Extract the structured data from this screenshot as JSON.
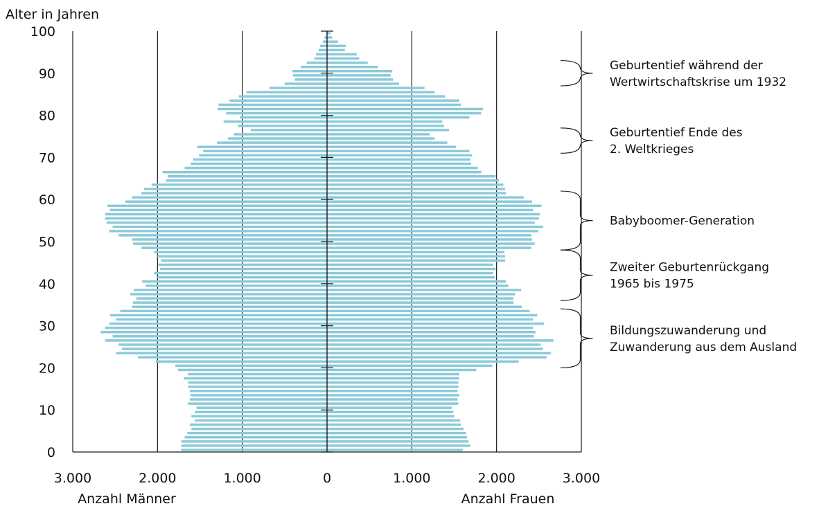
{
  "chart_data": {
    "type": "bar",
    "orientation": "horizontal-population-pyramid",
    "ylabel": "Alter in Jahren",
    "xlabel_left": "Anzahl Männer",
    "xlabel_right": "Anzahl Frauen",
    "xlim": [
      -3000,
      3000
    ],
    "ylim": [
      0,
      100
    ],
    "x_ticks": [
      -3000,
      -2000,
      -1000,
      0,
      1000,
      2000,
      3000
    ],
    "x_tick_labels": [
      "3.000",
      "2.000",
      "1.000",
      "0",
      "1.000",
      "2.000",
      "3.000"
    ],
    "y_ticks": [
      0,
      10,
      20,
      30,
      40,
      50,
      60,
      70,
      80,
      90,
      100
    ],
    "y_tick_labels": [
      "0",
      "10",
      "20",
      "30",
      "40",
      "50",
      "60",
      "70",
      "80",
      "90",
      "100"
    ],
    "grid": "vertical",
    "bar_color": "#8ccad8",
    "ages": [
      0,
      1,
      2,
      3,
      4,
      5,
      6,
      7,
      8,
      9,
      10,
      11,
      12,
      13,
      14,
      15,
      16,
      17,
      18,
      19,
      20,
      21,
      22,
      23,
      24,
      25,
      26,
      27,
      28,
      29,
      30,
      31,
      32,
      33,
      34,
      35,
      36,
      37,
      38,
      39,
      40,
      41,
      42,
      43,
      44,
      45,
      46,
      47,
      48,
      49,
      50,
      51,
      52,
      53,
      54,
      55,
      56,
      57,
      58,
      59,
      60,
      61,
      62,
      63,
      64,
      65,
      66,
      67,
      68,
      69,
      70,
      71,
      72,
      73,
      74,
      75,
      76,
      77,
      78,
      79,
      80,
      81,
      82,
      83,
      84,
      85,
      86,
      87,
      88,
      89,
      90,
      91,
      92,
      93,
      94,
      95,
      96,
      97,
      98,
      99
    ],
    "series": [
      {
        "name": "Anzahl Männer",
        "values": [
          1720,
          1720,
          1720,
          1680,
          1650,
          1600,
          1620,
          1560,
          1600,
          1560,
          1540,
          1640,
          1620,
          1610,
          1620,
          1640,
          1640,
          1690,
          1640,
          1760,
          1790,
          2020,
          2230,
          2490,
          2420,
          2460,
          2620,
          2530,
          2670,
          2620,
          2570,
          2490,
          2560,
          2440,
          2300,
          2290,
          2250,
          2320,
          2280,
          2140,
          2180,
          2000,
          2040,
          1970,
          1990,
          1960,
          2000,
          2040,
          2190,
          2290,
          2300,
          2460,
          2570,
          2530,
          2600,
          2620,
          2620,
          2560,
          2590,
          2380,
          2300,
          2190,
          2160,
          2070,
          1900,
          1880,
          1940,
          1680,
          1610,
          1580,
          1510,
          1460,
          1530,
          1300,
          1170,
          1100,
          900,
          1050,
          1220,
          1030,
          1190,
          1290,
          1280,
          1150,
          1040,
          950,
          680,
          500,
          380,
          400,
          410,
          310,
          240,
          150,
          130,
          100,
          80,
          50,
          30,
          10
        ]
      },
      {
        "name": "Anzahl Frauen",
        "values": [
          1600,
          1690,
          1670,
          1650,
          1640,
          1610,
          1580,
          1570,
          1500,
          1490,
          1470,
          1550,
          1540,
          1560,
          1540,
          1550,
          1550,
          1560,
          1560,
          1760,
          1950,
          2260,
          2590,
          2640,
          2550,
          2520,
          2670,
          2440,
          2460,
          2430,
          2560,
          2430,
          2480,
          2390,
          2300,
          2200,
          2200,
          2220,
          2290,
          2140,
          2110,
          1980,
          1960,
          1990,
          1960,
          2100,
          2100,
          2090,
          2410,
          2450,
          2420,
          2410,
          2490,
          2550,
          2450,
          2500,
          2510,
          2430,
          2530,
          2420,
          2320,
          2110,
          2100,
          2080,
          2030,
          1990,
          1820,
          1780,
          1700,
          1690,
          1710,
          1680,
          1520,
          1420,
          1270,
          1210,
          1440,
          1380,
          1360,
          1680,
          1820,
          1840,
          1580,
          1560,
          1390,
          1270,
          1150,
          850,
          780,
          750,
          770,
          600,
          480,
          380,
          350,
          210,
          220,
          130,
          60,
          40
        ]
      }
    ],
    "annotations": [
      {
        "text": [
          "Geburtentief während der",
          "Wertwirtschaftskrise um 1932"
        ],
        "age_from": 87,
        "age_to": 93
      },
      {
        "text": [
          "Geburtentief Ende des",
          "2. Weltkrieges"
        ],
        "age_from": 71,
        "age_to": 77
      },
      {
        "text": [
          "Babyboomer-Generation"
        ],
        "age_from": 48,
        "age_to": 62
      },
      {
        "text": [
          "Zweiter Geburtenrückgang",
          "1965 bis 1975"
        ],
        "age_from": 36,
        "age_to": 48
      },
      {
        "text": [
          "Bildungszuwanderung und",
          "Zuwanderung aus dem Ausland"
        ],
        "age_from": 20,
        "age_to": 34
      }
    ]
  }
}
